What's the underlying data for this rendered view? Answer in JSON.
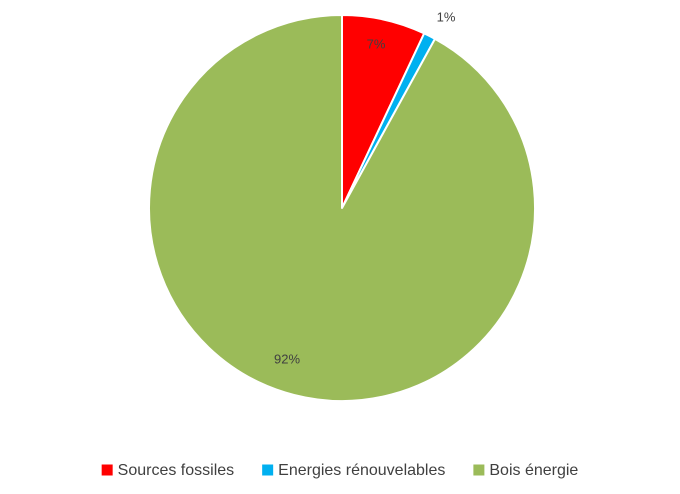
{
  "chart_data": {
    "type": "pie",
    "slices": [
      {
        "label": "Sources fossiles",
        "value": 7,
        "display": "7%",
        "color": "#ff0000"
      },
      {
        "label": "Energies rénouvelables",
        "value": 1,
        "display": "1%",
        "color": "#00b0f0"
      },
      {
        "label": "Bois énergie",
        "value": 92,
        "display": "92%",
        "color": "#9bbb59"
      }
    ],
    "start_angle_deg": 0,
    "direction": "clockwise",
    "legend_position": "bottom"
  }
}
